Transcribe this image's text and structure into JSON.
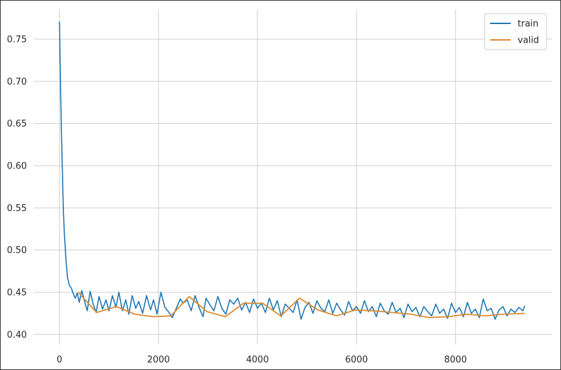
{
  "chart_data": {
    "type": "line",
    "title": "",
    "xlabel": "",
    "ylabel": "",
    "xlim": [
      -520,
      9950
    ],
    "ylim": [
      0.388,
      0.785
    ],
    "xticks": [
      0,
      2000,
      4000,
      6000,
      8000
    ],
    "xtick_labels": [
      "0",
      "2000",
      "4000",
      "6000",
      "8000"
    ],
    "yticks": [
      0.4,
      0.45,
      0.5,
      0.55,
      0.6,
      0.65,
      0.7,
      0.75
    ],
    "ytick_labels": [
      "0.40",
      "0.45",
      "0.50",
      "0.55",
      "0.60",
      "0.65",
      "0.70",
      "0.75"
    ],
    "grid": true,
    "legend_position": "top-right",
    "series": [
      {
        "name": "train",
        "color": "#1f77b4",
        "x": [
          0,
          20,
          40,
          60,
          80,
          100,
          130,
          160,
          200,
          240,
          280,
          320,
          360,
          400,
          450,
          500,
          560,
          620,
          680,
          740,
          800,
          870,
          940,
          1000,
          1070,
          1140,
          1200,
          1270,
          1340,
          1400,
          1470,
          1540,
          1600,
          1680,
          1760,
          1840,
          1900,
          1970,
          2050,
          2130,
          2200,
          2280,
          2360,
          2440,
          2500,
          2580,
          2660,
          2740,
          2820,
          2900,
          2960,
          3040,
          3120,
          3200,
          3280,
          3360,
          3440,
          3520,
          3600,
          3680,
          3760,
          3840,
          3920,
          4000,
          4080,
          4160,
          4240,
          4320,
          4400,
          4480,
          4560,
          4640,
          4720,
          4800,
          4880,
          4960,
          5040,
          5120,
          5200,
          5280,
          5360,
          5440,
          5520,
          5600,
          5680,
          5760,
          5840,
          5920,
          6000,
          6080,
          6160,
          6240,
          6320,
          6400,
          6480,
          6560,
          6640,
          6720,
          6800,
          6880,
          6960,
          7040,
          7120,
          7200,
          7280,
          7360,
          7440,
          7520,
          7600,
          7680,
          7760,
          7840,
          7920,
          8000,
          8080,
          8160,
          8240,
          8320,
          8400,
          8480,
          8560,
          8640,
          8720,
          8800,
          8880,
          8960,
          9040,
          9120,
          9200,
          9280,
          9360,
          9400
        ],
        "y": [
          0.771,
          0.7,
          0.64,
          0.59,
          0.545,
          0.518,
          0.49,
          0.468,
          0.458,
          0.455,
          0.448,
          0.443,
          0.449,
          0.438,
          0.452,
          0.441,
          0.428,
          0.451,
          0.436,
          0.426,
          0.445,
          0.43,
          0.441,
          0.428,
          0.446,
          0.432,
          0.45,
          0.428,
          0.441,
          0.424,
          0.446,
          0.431,
          0.439,
          0.425,
          0.446,
          0.429,
          0.441,
          0.424,
          0.45,
          0.432,
          0.427,
          0.42,
          0.431,
          0.442,
          0.437,
          0.441,
          0.428,
          0.446,
          0.432,
          0.421,
          0.443,
          0.435,
          0.428,
          0.445,
          0.431,
          0.424,
          0.441,
          0.436,
          0.443,
          0.429,
          0.438,
          0.426,
          0.442,
          0.431,
          0.437,
          0.426,
          0.443,
          0.429,
          0.44,
          0.421,
          0.436,
          0.431,
          0.426,
          0.441,
          0.418,
          0.432,
          0.438,
          0.425,
          0.44,
          0.431,
          0.427,
          0.441,
          0.425,
          0.437,
          0.429,
          0.423,
          0.439,
          0.428,
          0.433,
          0.425,
          0.44,
          0.427,
          0.433,
          0.421,
          0.437,
          0.428,
          0.424,
          0.438,
          0.426,
          0.431,
          0.42,
          0.436,
          0.427,
          0.432,
          0.421,
          0.433,
          0.427,
          0.422,
          0.436,
          0.425,
          0.43,
          0.419,
          0.437,
          0.426,
          0.432,
          0.421,
          0.438,
          0.425,
          0.43,
          0.42,
          0.442,
          0.428,
          0.431,
          0.418,
          0.429,
          0.433,
          0.422,
          0.43,
          0.426,
          0.432,
          0.428,
          0.434
        ]
      },
      {
        "name": "valid",
        "color": "#dd8a2b",
        "x": [
          380,
          750,
          1150,
          1520,
          1900,
          2250,
          2620,
          2980,
          3350,
          3720,
          4100,
          4470,
          4850,
          5220,
          5600,
          5970,
          6350,
          6720,
          7100,
          7470,
          7850,
          8230,
          8600,
          8970,
          9400
        ],
        "y": [
          0.45,
          0.426,
          0.433,
          0.424,
          0.421,
          0.422,
          0.445,
          0.427,
          0.421,
          0.437,
          0.437,
          0.422,
          0.443,
          0.429,
          0.422,
          0.429,
          0.428,
          0.426,
          0.424,
          0.42,
          0.421,
          0.424,
          0.422,
          0.424,
          0.425
        ]
      }
    ]
  }
}
